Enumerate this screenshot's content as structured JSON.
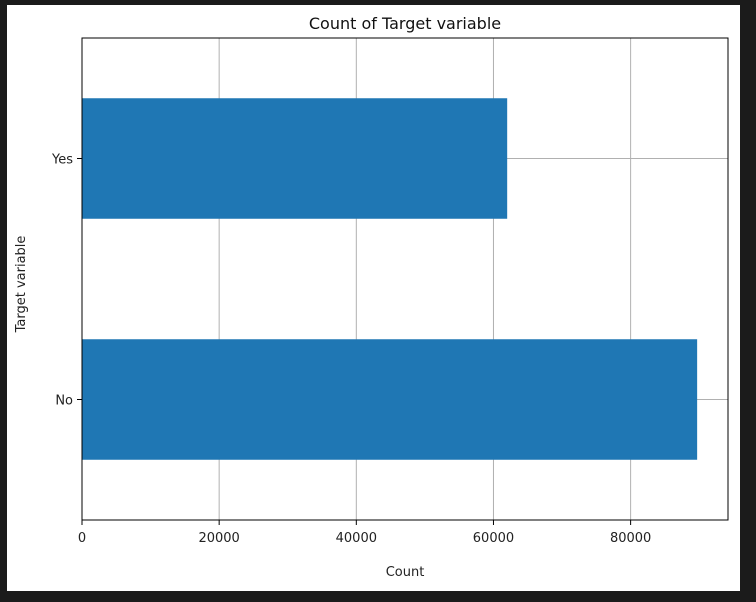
{
  "chart_data": {
    "type": "bar",
    "orientation": "horizontal",
    "title": "Count of Target variable",
    "xlabel": "Count",
    "ylabel": "Target variable",
    "categories": [
      "No",
      "Yes"
    ],
    "values": [
      89700,
      62000
    ],
    "xlim": [
      0,
      94200
    ],
    "xticks": [
      0,
      20000,
      40000,
      60000,
      80000
    ],
    "grid": true,
    "legend": "none",
    "bar_color": "#1f77b4",
    "grid_color": "#b0b0b0"
  }
}
